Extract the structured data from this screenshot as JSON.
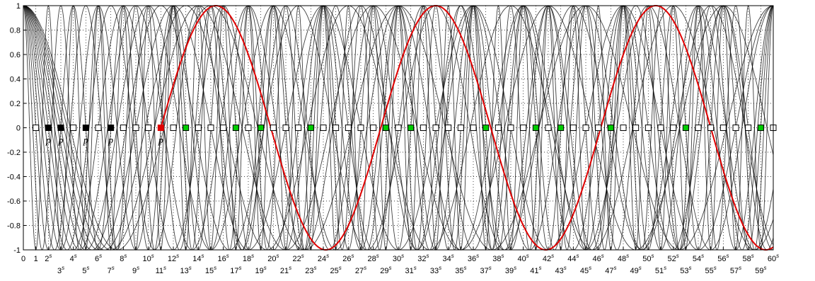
{
  "chart_data": {
    "type": "line",
    "title": "",
    "xlabel": "",
    "ylabel": "",
    "xlim": [
      0,
      60
    ],
    "ylim": [
      -1,
      1
    ],
    "grid": "dotted",
    "legend": "none",
    "y_ticks": [
      "1",
      "0.8",
      "0.6",
      "0.4",
      "0.2",
      "0",
      "-0.2",
      "-0.4",
      "-0.6",
      "-0.8",
      "-1"
    ],
    "x_ticks_row1": [
      {
        "x": 0,
        "label": "0",
        "sup": ""
      },
      {
        "x": 1,
        "label": "1",
        "sup": ""
      },
      {
        "x": 2,
        "label": "2",
        "sup": "s"
      },
      {
        "x": 4,
        "label": "4",
        "sup": "s"
      },
      {
        "x": 6,
        "label": "6",
        "sup": "s"
      },
      {
        "x": 8,
        "label": "8",
        "sup": "s"
      },
      {
        "x": 10,
        "label": "10",
        "sup": "s"
      },
      {
        "x": 12,
        "label": "12",
        "sup": "s"
      },
      {
        "x": 14,
        "label": "14",
        "sup": "s"
      },
      {
        "x": 16,
        "label": "16",
        "sup": "s"
      },
      {
        "x": 18,
        "label": "18",
        "sup": "s"
      },
      {
        "x": 20,
        "label": "20",
        "sup": "s"
      },
      {
        "x": 22,
        "label": "22",
        "sup": "s"
      },
      {
        "x": 24,
        "label": "24",
        "sup": "s"
      },
      {
        "x": 26,
        "label": "26",
        "sup": "s"
      },
      {
        "x": 28,
        "label": "28",
        "sup": "s"
      },
      {
        "x": 30,
        "label": "30",
        "sup": "s"
      },
      {
        "x": 32,
        "label": "32",
        "sup": "s"
      },
      {
        "x": 34,
        "label": "34",
        "sup": "s"
      },
      {
        "x": 36,
        "label": "36",
        "sup": "s"
      },
      {
        "x": 38,
        "label": "38",
        "sup": "s"
      },
      {
        "x": 40,
        "label": "40",
        "sup": "s"
      },
      {
        "x": 42,
        "label": "42",
        "sup": "s"
      },
      {
        "x": 44,
        "label": "44",
        "sup": "s"
      },
      {
        "x": 46,
        "label": "46",
        "sup": "s"
      },
      {
        "x": 48,
        "label": "48",
        "sup": "s"
      },
      {
        "x": 50,
        "label": "50",
        "sup": "s"
      },
      {
        "x": 52,
        "label": "52",
        "sup": "s"
      },
      {
        "x": 54,
        "label": "54",
        "sup": "s"
      },
      {
        "x": 56,
        "label": "56",
        "sup": "s"
      },
      {
        "x": 58,
        "label": "58",
        "sup": "s"
      },
      {
        "x": 60,
        "label": "60",
        "sup": "s"
      }
    ],
    "x_ticks_row2": [
      {
        "x": 3,
        "label": "3",
        "sup": "s"
      },
      {
        "x": 5,
        "label": "5",
        "sup": "s"
      },
      {
        "x": 7,
        "label": "7",
        "sup": "s"
      },
      {
        "x": 9,
        "label": "9",
        "sup": "s"
      },
      {
        "x": 11,
        "label": "11",
        "sup": "s"
      },
      {
        "x": 13,
        "label": "13",
        "sup": "s"
      },
      {
        "x": 15,
        "label": "15",
        "sup": "s"
      },
      {
        "x": 17,
        "label": "17",
        "sup": "s"
      },
      {
        "x": 19,
        "label": "19",
        "sup": "s"
      },
      {
        "x": 21,
        "label": "21",
        "sup": "s"
      },
      {
        "x": 23,
        "label": "23",
        "sup": "s"
      },
      {
        "x": 25,
        "label": "25",
        "sup": "s"
      },
      {
        "x": 27,
        "label": "27",
        "sup": "s"
      },
      {
        "x": 29,
        "label": "29",
        "sup": "s"
      },
      {
        "x": 31,
        "label": "31",
        "sup": "s"
      },
      {
        "x": 33,
        "label": "33",
        "sup": "s"
      },
      {
        "x": 35,
        "label": "35",
        "sup": "s"
      },
      {
        "x": 37,
        "label": "37",
        "sup": "s"
      },
      {
        "x": 39,
        "label": "39",
        "sup": "s"
      },
      {
        "x": 41,
        "label": "41",
        "sup": "s"
      },
      {
        "x": 43,
        "label": "43",
        "sup": "s"
      },
      {
        "x": 45,
        "label": "45",
        "sup": "s"
      },
      {
        "x": 47,
        "label": "47",
        "sup": "s"
      },
      {
        "x": 49,
        "label": "49",
        "sup": "s"
      },
      {
        "x": 51,
        "label": "51",
        "sup": "s"
      },
      {
        "x": 53,
        "label": "53",
        "sup": "s"
      },
      {
        "x": 55,
        "label": "55",
        "sup": "s"
      },
      {
        "x": 57,
        "label": "57",
        "sup": "s"
      },
      {
        "x": 59,
        "label": "59",
        "sup": "s"
      }
    ],
    "curves": {
      "description_note": "",
      "black_periods": [
        2,
        3,
        4,
        5,
        6,
        7,
        8,
        9,
        10,
        11,
        12,
        13,
        14,
        15
      ],
      "black_color": "#000000",
      "highlight_period": 44,
      "highlight_color": "#e00000",
      "start_x": 11
    },
    "markers": {
      "x_min": 1,
      "x_max": 60,
      "y": 0,
      "black": [
        2,
        3,
        5,
        7
      ],
      "red": [
        11
      ],
      "green": [
        13,
        17,
        19,
        23,
        29,
        31,
        37,
        41,
        43,
        47,
        53,
        59
      ],
      "black_color": "#000000",
      "red_color": "#e00000",
      "green_color": "#00cc00",
      "empty_color": "#ffffff"
    },
    "annotations": [
      {
        "x": 2,
        "text": "p"
      },
      {
        "x": 3,
        "text": "p"
      },
      {
        "x": 5,
        "text": "p"
      },
      {
        "x": 7,
        "text": "p"
      },
      {
        "x": 11,
        "text": "p"
      }
    ]
  }
}
